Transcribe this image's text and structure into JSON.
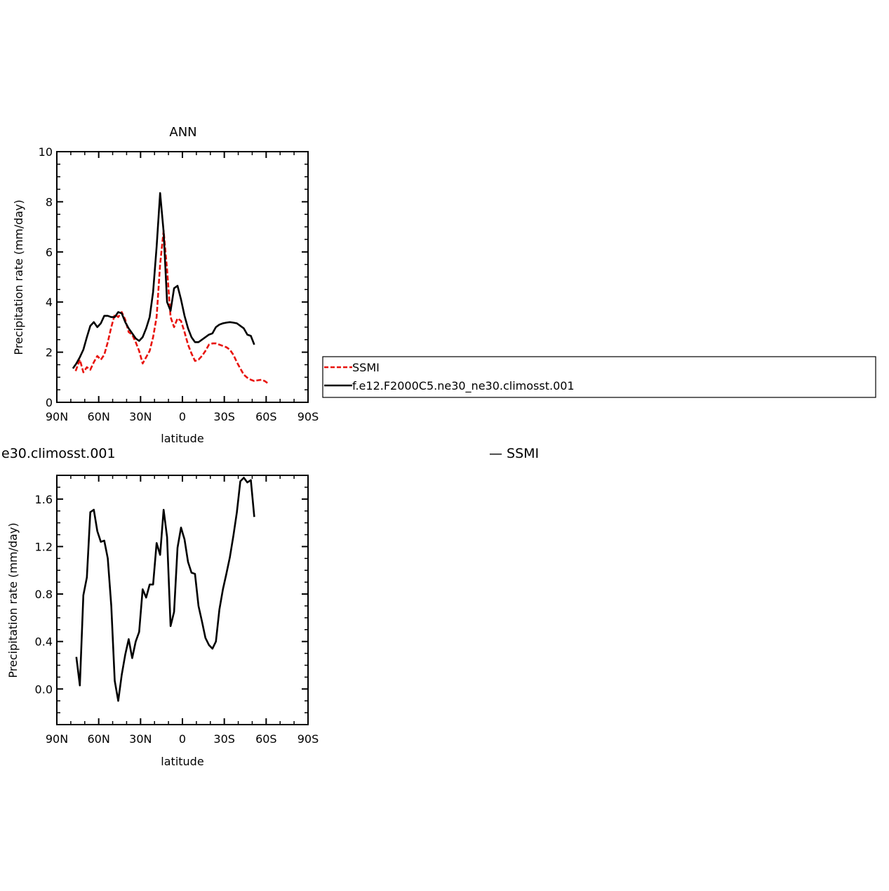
{
  "chart_data": [
    {
      "type": "line",
      "title": "ANN",
      "xlabel": "latitude",
      "ylabel": "Precipitation rate (mm/day)",
      "xlim": [
        90,
        -90
      ],
      "ylim": [
        0,
        10
      ],
      "x_ticks": [
        90,
        60,
        30,
        0,
        -30,
        -60,
        -90
      ],
      "x_tick_labels": [
        "90N",
        "60N",
        "30N",
        "0",
        "30S",
        "60S",
        "90S"
      ],
      "y_ticks": [
        0,
        2,
        4,
        6,
        8,
        10
      ],
      "y_tick_labels": [
        "0",
        "2",
        "4",
        "6",
        "8",
        "10"
      ],
      "legend": "right",
      "series": [
        {
          "name": "SSMI",
          "color": "#e8120c",
          "dash": "dashed",
          "x": [
            76.5,
            73.5,
            71,
            68.5,
            66,
            63.5,
            61,
            58.5,
            56,
            53.5,
            51,
            48.5,
            46,
            43.5,
            41,
            38.5,
            36,
            33.5,
            31,
            28.5,
            26,
            23.5,
            21,
            18.5,
            16,
            13.5,
            11,
            8.5,
            6,
            3.5,
            1,
            -1.5,
            -4,
            -6.5,
            -9,
            -11.5,
            -14,
            -16.5,
            -19,
            -21.5,
            -24,
            -26.5,
            -29,
            -31.5,
            -34,
            -36.5,
            -39,
            -41.5,
            -44,
            -46.5,
            -49,
            -51.5,
            -54,
            -56.5,
            -59,
            -61.5,
            -64,
            -66.5,
            -69,
            -71.5,
            -74,
            -76.5
          ],
          "y": [
            1.25,
            1.7,
            1.2,
            1.4,
            1.3,
            1.6,
            1.85,
            1.7,
            1.9,
            2.4,
            3.0,
            3.5,
            3.4,
            3.6,
            3.3,
            2.8,
            2.7,
            2.4,
            2.05,
            1.55,
            1.8,
            2.05,
            2.6,
            3.4,
            5.5,
            6.85,
            5.3,
            3.4,
            3.0,
            3.35,
            3.25,
            2.8,
            2.3,
            1.95,
            1.65,
            1.7,
            1.85,
            2.05,
            2.3,
            2.35,
            2.35,
            2.3,
            2.25,
            2.2,
            2.1,
            1.9,
            1.6,
            1.35,
            1.1,
            0.98,
            0.9,
            0.85,
            0.88,
            0.9,
            0.85,
            0.75,
            0,
            0,
            0,
            0,
            0,
            0
          ]
        },
        {
          "name": "f.e12.F2000C5.ne30_ne30.climosst.001",
          "color": "#000000",
          "dash": "solid",
          "x": [
            78.5,
            76,
            73.5,
            71,
            68.5,
            66,
            63.5,
            61,
            58.5,
            56,
            53.5,
            51,
            48.5,
            46,
            43.5,
            41,
            38.5,
            36,
            33.5,
            31,
            28.5,
            26,
            23.5,
            21,
            18.5,
            16,
            13.5,
            11,
            8.5,
            6,
            3.5,
            1,
            -1.5,
            -4,
            -6.5,
            -9,
            -11.5,
            -14,
            -16.5,
            -19,
            -21.5,
            -24,
            -26.5,
            -29,
            -31.5,
            -34,
            -36.5,
            -39,
            -41.5,
            -44,
            -46.5,
            -49,
            -51.5,
            -54,
            -56.5,
            -59,
            -61.5,
            -64,
            -66.5
          ],
          "y": [
            1.35,
            1.55,
            1.8,
            2.1,
            2.6,
            3.05,
            3.2,
            3.0,
            3.15,
            3.45,
            3.45,
            3.4,
            3.4,
            3.6,
            3.55,
            3.2,
            2.95,
            2.75,
            2.55,
            2.45,
            2.6,
            2.95,
            3.4,
            4.4,
            6.2,
            8.35,
            6.8,
            4.0,
            3.65,
            4.55,
            4.65,
            4.1,
            3.45,
            2.95,
            2.6,
            2.4,
            2.4,
            2.5,
            2.6,
            2.7,
            2.75,
            3.0,
            3.1,
            3.15,
            3.18,
            3.2,
            3.18,
            3.15,
            3.05,
            2.95,
            2.7,
            2.65,
            2.3,
            0,
            0,
            0,
            0,
            0,
            0
          ]
        }
      ]
    },
    {
      "type": "line",
      "title": "e30.climosst.001",
      "title_right": "— SSMI",
      "xlabel": "latitude",
      "ylabel": "Precipitation rate (mm/day)",
      "xlim": [
        90,
        -90
      ],
      "ylim": [
        -0.3,
        1.8
      ],
      "x_ticks": [
        90,
        60,
        30,
        0,
        -30,
        -60,
        -90
      ],
      "x_tick_labels": [
        "90N",
        "60N",
        "30N",
        "0",
        "30S",
        "60S",
        "90S"
      ],
      "y_ticks": [
        0.0,
        0.4,
        0.8,
        1.2,
        1.6
      ],
      "y_tick_labels": [
        "0.0",
        "0.4",
        "0.8",
        "1.2",
        "1.6"
      ],
      "series": [
        {
          "color": "#000000",
          "dash": "solid",
          "x": [
            76,
            73.5,
            71,
            68.5,
            66,
            63.5,
            61,
            58.5,
            56,
            53.5,
            51,
            48.5,
            46,
            43.5,
            41,
            38.5,
            36,
            33.5,
            31,
            28.5,
            26,
            23.5,
            21,
            18.5,
            16,
            13.5,
            11,
            8.5,
            6,
            3.5,
            1,
            -1.5,
            -4,
            -6.5,
            -9,
            -11.5,
            -14,
            -16.5,
            -19,
            -21.5,
            -24,
            -26.5,
            -29,
            -31.5,
            -34,
            -36.5,
            -39,
            -41.5,
            -44,
            -46.5,
            -49,
            -51.5,
            -54,
            -56.5,
            -59,
            -61.5,
            -64,
            -66.5
          ],
          "y": [
            0.27,
            0.03,
            0.79,
            0.94,
            1.49,
            1.51,
            1.33,
            1.24,
            1.25,
            1.1,
            0.7,
            0.07,
            -0.1,
            0.12,
            0.29,
            0.42,
            0.26,
            0.4,
            0.48,
            0.84,
            0.77,
            0.88,
            0.88,
            1.23,
            1.13,
            1.51,
            1.28,
            0.53,
            0.65,
            1.19,
            1.36,
            1.26,
            1.07,
            0.98,
            0.97,
            0.7,
            0.57,
            0.43,
            0.37,
            0.34,
            0.4,
            0.67,
            0.84,
            0.97,
            1.11,
            1.29,
            1.49,
            1.75,
            1.78,
            1.74,
            1.76,
            1.45,
            0,
            0,
            0,
            0,
            0,
            0
          ]
        }
      ]
    }
  ]
}
